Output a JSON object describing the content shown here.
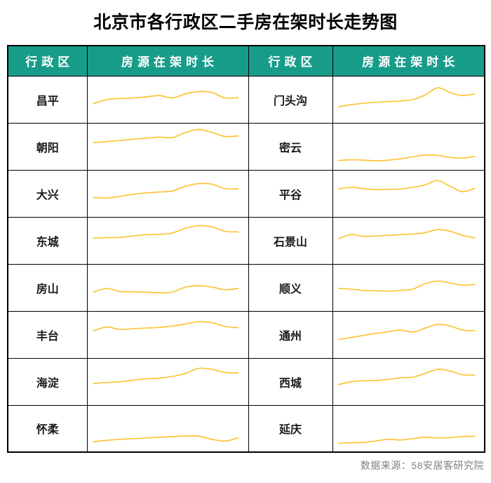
{
  "title": "北京市各行政区二手房在架时长走势图",
  "table": {
    "headers": [
      "行政区",
      "房源在架时长",
      "行政区",
      "房源在架时长"
    ]
  },
  "footer": {
    "source": "数据来源：58安居客研究院"
  },
  "colors": {
    "header_bg": "#189C8A",
    "header_text": "#FFFFFF",
    "sparkline": "#FCC335",
    "border": "#000000",
    "title_text": "#000000",
    "district_text": "#1A1A1A",
    "source_text": "#7F7F7F"
  },
  "chart_data": {
    "type": "line",
    "title": "北京市各行政区二手房在架时长走势图",
    "legend": "none",
    "axes": "none (sparklines)",
    "value_scale": "relative 0-100, estimated from sparkline heights (chart shows no axis labels)",
    "series": [
      {
        "name": "昌平",
        "values": [
          32,
          44,
          47,
          49,
          52,
          56,
          49,
          61,
          68,
          65,
          49,
          50
        ]
      },
      {
        "name": "朝阳",
        "values": [
          56,
          59,
          62,
          66,
          69,
          72,
          71,
          86,
          95,
          86,
          74,
          76
        ]
      },
      {
        "name": "大兴",
        "values": [
          33,
          31,
          36,
          42,
          46,
          49,
          52,
          66,
          74,
          72,
          59,
          58
        ]
      },
      {
        "name": "东城",
        "values": [
          52,
          53,
          54,
          58,
          62,
          63,
          67,
          81,
          89,
          85,
          72,
          70
        ]
      },
      {
        "name": "房山",
        "values": [
          31,
          42,
          33,
          32,
          31,
          29,
          31,
          46,
          50,
          46,
          38,
          42
        ]
      },
      {
        "name": "丰台",
        "values": [
          56,
          67,
          60,
          62,
          64,
          66,
          70,
          76,
          83,
          80,
          69,
          65
        ]
      },
      {
        "name": "海淀",
        "values": [
          39,
          42,
          44,
          49,
          53,
          55,
          60,
          69,
          84,
          81,
          72,
          70
        ]
      },
      {
        "name": "怀柔",
        "values": [
          6,
          10,
          13,
          15,
          17,
          19,
          21,
          23,
          22,
          13,
          8,
          17
        ]
      },
      {
        "name": "门头沟",
        "values": [
          23,
          29,
          33,
          36,
          38,
          40,
          44,
          58,
          79,
          65,
          56,
          61
        ]
      },
      {
        "name": "密云",
        "values": [
          3,
          5,
          4,
          2,
          4,
          8,
          14,
          19,
          18,
          12,
          10,
          15
        ]
      },
      {
        "name": "平谷",
        "values": [
          58,
          63,
          59,
          56,
          57,
          58,
          63,
          70,
          83,
          66,
          50,
          60
        ]
      },
      {
        "name": "石景山",
        "values": [
          50,
          62,
          57,
          58,
          60,
          62,
          64,
          68,
          77,
          72,
          60,
          52
        ]
      },
      {
        "name": "顺义",
        "values": [
          42,
          40,
          36,
          35,
          34,
          36,
          40,
          56,
          64,
          58,
          52,
          54
        ]
      },
      {
        "name": "通州",
        "values": [
          30,
          36,
          42,
          48,
          53,
          58,
          52,
          64,
          75,
          70,
          58,
          56
        ]
      },
      {
        "name": "西城",
        "values": [
          36,
          44,
          47,
          48,
          51,
          56,
          58,
          69,
          81,
          76,
          65,
          64
        ]
      },
      {
        "name": "延庆",
        "values": [
          1,
          3,
          4,
          8,
          13,
          11,
          15,
          19,
          17,
          18,
          21,
          22
        ]
      }
    ]
  }
}
